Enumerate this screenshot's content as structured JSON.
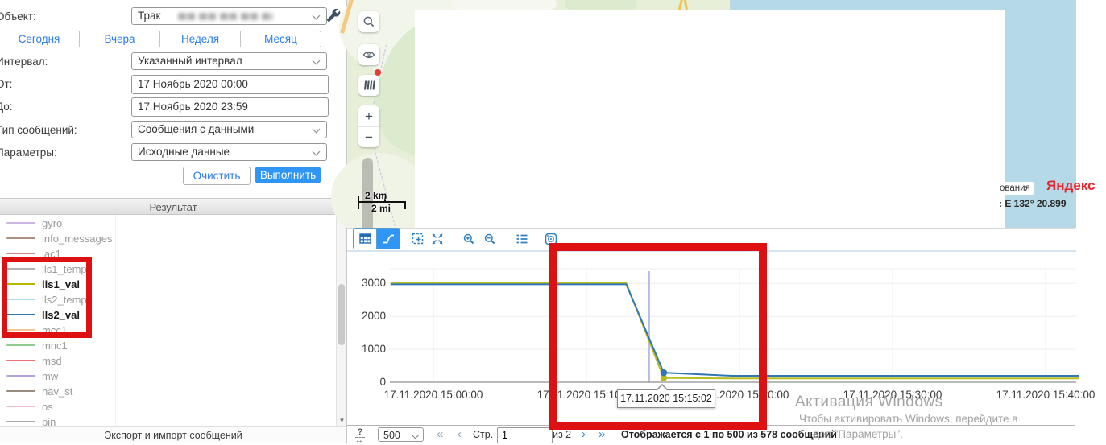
{
  "form": {
    "object_label": "Объект:",
    "object_value": "Трак",
    "quick_ranges": [
      "Сегодня",
      "Вчера",
      "Неделя",
      "Месяц"
    ],
    "interval_label": "Интервал:",
    "interval_value": "Указанный интервал",
    "from_label": "От:",
    "from_value": "17 Ноябрь 2020 00:00",
    "to_label": "До:",
    "to_value": "17 Ноябрь 2020 23:59",
    "message_type_label": "Тип сообщений:",
    "message_type_value": "Сообщения с данными",
    "parameters_label": "Параметры:",
    "parameters_value": "Исходные данные",
    "clear_button": "Очистить",
    "execute_button": "Выполнить"
  },
  "result_panel": {
    "header": "Результат",
    "footer_link": "Экспорт и импорт сообщений",
    "parameters": [
      {
        "name": "gyro",
        "color": "#cbb6e6",
        "selected": false
      },
      {
        "name": "info_messages",
        "color": "#b08d80",
        "selected": false
      },
      {
        "name": "lac1",
        "color": "#cc8888",
        "selected": false
      },
      {
        "name": "lls1_temp",
        "color": "#b3b3b3",
        "selected": false
      },
      {
        "name": "lls1_val",
        "color": "#b5b800",
        "selected": true
      },
      {
        "name": "lls2_temp",
        "color": "#a9dcec",
        "selected": false
      },
      {
        "name": "lls2_val",
        "color": "#3377b5",
        "selected": true
      },
      {
        "name": "mcc1",
        "color": "#f6c493",
        "selected": false
      },
      {
        "name": "mnc1",
        "color": "#8ecb8e",
        "selected": false
      },
      {
        "name": "msd",
        "color": "#ee7272",
        "selected": false
      },
      {
        "name": "mw",
        "color": "#b4a2db",
        "selected": false
      },
      {
        "name": "nav_st",
        "color": "#998b7e",
        "selected": false
      },
      {
        "name": "os",
        "color": "#f2bcd2",
        "selected": false
      },
      {
        "name": "pin",
        "color": "#ababab",
        "selected": false
      }
    ]
  },
  "map": {
    "scale_km": "2 km",
    "scale_mi": "2 mi",
    "attribution_fragment": "ования",
    "brand": "Яндекс",
    "coordinates_fragment": ": E 132° 20.899"
  },
  "chart_data": {
    "type": "line",
    "x_axis": {
      "tick_minutes": [
        0,
        10,
        20,
        30,
        40
      ],
      "tick_labels": [
        "17.11.2020 15:00:00",
        "17.11.2020 15:10:00",
        "17.11.2020 15:20:00",
        "17.11.2020 15:30:00",
        "17.11.2020 15:40:00"
      ]
    },
    "y_axis": {
      "ticks": [
        0,
        1000,
        2000,
        3000
      ],
      "max": 3500
    },
    "series": [
      {
        "name": "lls1_val",
        "color": "#b9bb1e",
        "points": [
          [
            -2.8,
            3010
          ],
          [
            12.6,
            3010
          ],
          [
            15.05,
            130
          ],
          [
            19.5,
            115
          ],
          [
            42.2,
            115
          ]
        ],
        "marker": [
          15.05,
          130
        ]
      },
      {
        "name": "lls2_val",
        "color": "#3077b4",
        "points": [
          [
            -2.8,
            2975
          ],
          [
            12.6,
            2975
          ],
          [
            15.05,
            290
          ],
          [
            19.5,
            195
          ],
          [
            42.2,
            195
          ]
        ],
        "marker": [
          15.05,
          290
        ]
      }
    ],
    "cursor_minute": 14.1,
    "tooltip": "17.11.2020 15:15:02"
  },
  "pagination": {
    "page_size": "500",
    "first": "«",
    "prev": "‹",
    "page_label": "Стр.",
    "page_value": "1",
    "of_label": "из 2",
    "next": "›",
    "last": "»",
    "status": "Отображается с 1 по 500 из 578 сообщений"
  },
  "watermark": {
    "line1": "Активация Windows",
    "line2": "Чтобы активировать Windows, перейдите в",
    "line3": "дел \"Параметры\"."
  }
}
